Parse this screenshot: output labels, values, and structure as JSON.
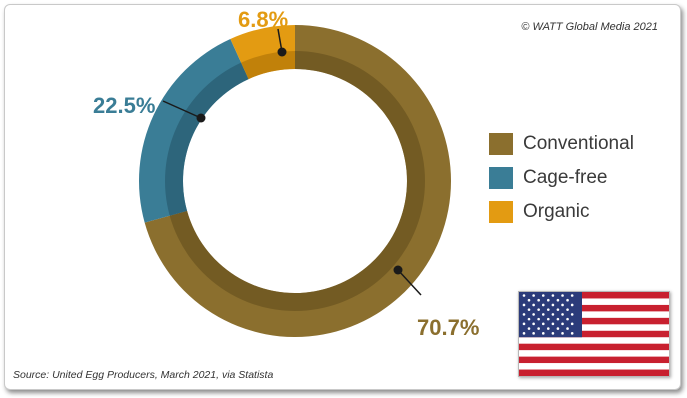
{
  "copyright": "© WATT Global Media 2021",
  "source": "Source: United Egg Producers, March 2021, via Statista",
  "colors": {
    "conventional": "#8b6f2e",
    "conventional_dark": "#6b5420",
    "cage_free": "#3a7d96",
    "cage_free_dark": "#2a5e72",
    "organic": "#e39b12",
    "organic_dark": "#b57808"
  },
  "chart_data": {
    "type": "pie",
    "style": "donut",
    "categories": [
      "Conventional",
      "Cage-free",
      "Organic"
    ],
    "values": [
      70.7,
      22.5,
      6.8
    ],
    "data_labels": [
      "70.7%",
      "22.5%",
      "6.8%"
    ],
    "legend": {
      "placement": "right",
      "items": [
        "Conventional",
        "Cage-free",
        "Organic"
      ]
    }
  },
  "flag": {
    "icon": "us-flag-icon"
  }
}
